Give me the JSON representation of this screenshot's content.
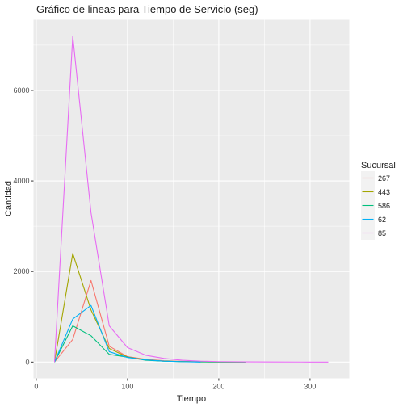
{
  "chart_data": {
    "type": "line",
    "title": "Gráfico de lineas para Tiempo de Servicio (seg)",
    "xlabel": "Tiempo",
    "ylabel": "Cantidad",
    "xlim": [
      -3,
      343
    ],
    "ylim": [
      -360,
      7560
    ],
    "x_ticks": [
      0,
      100,
      200,
      300
    ],
    "y_ticks": [
      0,
      2000,
      4000,
      6000
    ],
    "grid": true,
    "legend_title": "Sucursal",
    "legend_position": "right",
    "series": [
      {
        "name": "267",
        "color": "#F8766D",
        "x": [
          20,
          40,
          60,
          80,
          100,
          120,
          140,
          160,
          180,
          200,
          230
        ],
        "y": [
          0,
          500,
          1800,
          350,
          120,
          60,
          30,
          15,
          8,
          4,
          0
        ]
      },
      {
        "name": "443",
        "color": "#A3A500",
        "x": [
          20,
          40,
          60,
          80,
          100,
          120,
          140,
          160,
          180,
          200,
          230
        ],
        "y": [
          0,
          2400,
          1150,
          300,
          110,
          50,
          20,
          10,
          5,
          2,
          0
        ]
      },
      {
        "name": "586",
        "color": "#00BF7D",
        "x": [
          20,
          40,
          60,
          80,
          100,
          120,
          140,
          160,
          180,
          200,
          230
        ],
        "y": [
          0,
          800,
          580,
          170,
          110,
          40,
          20,
          10,
          5,
          2,
          0
        ]
      },
      {
        "name": "62",
        "color": "#00B0F6",
        "x": [
          20,
          40,
          60,
          80,
          100,
          120,
          140,
          160,
          180
        ],
        "y": [
          0,
          950,
          1250,
          230,
          100,
          50,
          20,
          8,
          0
        ]
      },
      {
        "name": "85",
        "color": "#E76BF3",
        "x": [
          20,
          40,
          60,
          80,
          100,
          120,
          140,
          160,
          180,
          200,
          230,
          260,
          290,
          320
        ],
        "y": [
          0,
          7200,
          3300,
          800,
          320,
          150,
          80,
          40,
          20,
          10,
          5,
          2,
          1,
          0
        ]
      }
    ]
  }
}
